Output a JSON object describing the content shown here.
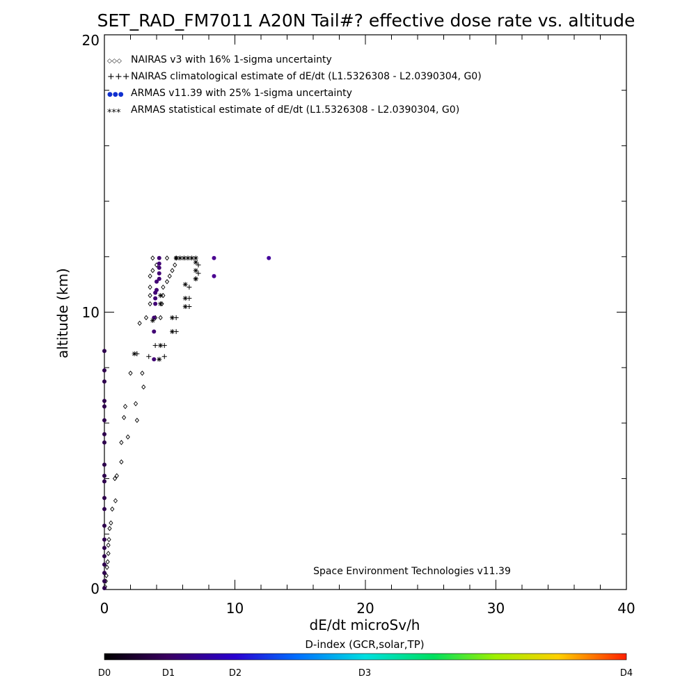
{
  "chart_data": {
    "type": "scatter",
    "title": "SET_RAD_FM7011  A20N Tail#? effective dose rate vs. altitude",
    "xlabel": "dE/dt microSv/h",
    "ylabel": "altitude (km)",
    "xlim": [
      0,
      40
    ],
    "ylim": [
      0,
      20
    ],
    "xticks": [
      "0",
      "10",
      "20",
      "30",
      "40"
    ],
    "yticks": [
      "0",
      "10",
      "20"
    ],
    "grid": false,
    "legend_position": "top-left",
    "legend": [
      {
        "marker": "◇◇◇",
        "label": "NAIRAS v3 with 16% 1-sigma uncertainty"
      },
      {
        "marker": "+++",
        "label": "NAIRAS climatological estimate of dE/dt (L1.5326308 - L2.0390304, G0)"
      },
      {
        "marker": "●●●",
        "label": "ARMAS v11.39 with 25% 1-sigma uncertainty"
      },
      {
        "marker": "***",
        "label": "ARMAS statistical estimate of dE/dt (L1.5326308 - L2.0390304, G0)"
      }
    ],
    "annotation": "Space Environment Technologies v11.39",
    "colorbar": {
      "title": "D-index (GCR,solar,TP)",
      "labels": [
        {
          "text": "D0",
          "value": 0
        },
        {
          "text": "D1",
          "value": 1
        },
        {
          "text": "D2",
          "value": 2
        },
        {
          "text": "D3",
          "value": 3
        },
        {
          "text": "D4",
          "value": 4
        }
      ]
    },
    "series": [
      {
        "name": "NAIRAS v3 with 16% 1-sigma uncertainty",
        "marker": "diamond",
        "color": "#000000",
        "points": [
          [
            0.05,
            0.1
          ],
          [
            0.1,
            0.3
          ],
          [
            0.15,
            0.5
          ],
          [
            0.2,
            0.8
          ],
          [
            0.25,
            1.0
          ],
          [
            0.3,
            1.3
          ],
          [
            0.3,
            1.6
          ],
          [
            0.35,
            1.8
          ],
          [
            0.4,
            2.2
          ],
          [
            0.5,
            2.4
          ],
          [
            0.6,
            2.9
          ],
          [
            0.85,
            3.2
          ],
          [
            0.8,
            4.0
          ],
          [
            0.95,
            4.1
          ],
          [
            1.3,
            4.6
          ],
          [
            1.3,
            5.3
          ],
          [
            1.8,
            5.5
          ],
          [
            1.5,
            6.2
          ],
          [
            2.5,
            6.1
          ],
          [
            1.6,
            6.6
          ],
          [
            2.4,
            6.7
          ],
          [
            3.0,
            7.3
          ],
          [
            2.0,
            7.8
          ],
          [
            2.9,
            7.8
          ],
          [
            2.7,
            9.6
          ],
          [
            3.2,
            9.8
          ],
          [
            3.9,
            9.8
          ],
          [
            4.3,
            9.8
          ],
          [
            3.5,
            10.3
          ],
          [
            4.4,
            10.3
          ],
          [
            3.5,
            10.6
          ],
          [
            4.5,
            10.6
          ],
          [
            3.5,
            10.9
          ],
          [
            4.5,
            10.9
          ],
          [
            4.8,
            11.1
          ],
          [
            3.5,
            11.3
          ],
          [
            5.0,
            11.3
          ],
          [
            3.7,
            11.5
          ],
          [
            5.2,
            11.5
          ],
          [
            4.0,
            11.7
          ],
          [
            5.4,
            11.7
          ],
          [
            3.7,
            11.95
          ],
          [
            4.8,
            11.95
          ],
          [
            5.5,
            11.95
          ]
        ]
      },
      {
        "name": "NAIRAS climatological estimate of dE/dt (L1.5326308 - L2.0390304, G0)",
        "marker": "plus",
        "color": "#000000",
        "points": [
          [
            2.5,
            8.5
          ],
          [
            3.4,
            8.4
          ],
          [
            4.6,
            8.4
          ],
          [
            3.9,
            8.8
          ],
          [
            4.6,
            8.8
          ],
          [
            5.5,
            9.3
          ],
          [
            5.5,
            9.8
          ],
          [
            6.5,
            10.2
          ],
          [
            6.5,
            10.5
          ],
          [
            6.5,
            10.9
          ],
          [
            7.0,
            11.2
          ],
          [
            7.2,
            11.4
          ],
          [
            7.2,
            11.7
          ]
        ]
      },
      {
        "name": "ARMAS v11.39 with 25% 1-sigma uncertainty",
        "marker": "circle",
        "points": [
          [
            0.0,
            0.05,
            0.4
          ],
          [
            0.0,
            0.3,
            0.4
          ],
          [
            0.0,
            0.6,
            0.4
          ],
          [
            0.0,
            0.9,
            0.4
          ],
          [
            0.0,
            1.2,
            0.4
          ],
          [
            0.0,
            1.5,
            0.4
          ],
          [
            0.0,
            1.8,
            0.4
          ],
          [
            0.0,
            2.3,
            0.4
          ],
          [
            0.0,
            2.9,
            0.4
          ],
          [
            0.0,
            3.3,
            0.4
          ],
          [
            0.0,
            3.9,
            0.4
          ],
          [
            0.0,
            4.1,
            0.4
          ],
          [
            0.0,
            4.5,
            0.4
          ],
          [
            0.0,
            5.3,
            0.4
          ],
          [
            0.0,
            5.6,
            0.4
          ],
          [
            0.0,
            6.1,
            0.4
          ],
          [
            0.0,
            6.6,
            0.4
          ],
          [
            0.0,
            6.8,
            0.4
          ],
          [
            0.0,
            7.5,
            0.4
          ],
          [
            0.0,
            7.9,
            0.4
          ],
          [
            0.0,
            8.6,
            0.4
          ],
          [
            3.8,
            8.3,
            0.7
          ],
          [
            3.8,
            9.3,
            0.7
          ],
          [
            3.8,
            9.8,
            0.7
          ],
          [
            3.9,
            10.3,
            0.7
          ],
          [
            3.9,
            10.5,
            0.7
          ],
          [
            3.9,
            10.7,
            0.7
          ],
          [
            4.0,
            10.8,
            0.7
          ],
          [
            4.0,
            11.1,
            0.7
          ],
          [
            4.2,
            11.2,
            0.7
          ],
          [
            4.2,
            11.4,
            0.7
          ],
          [
            4.2,
            11.6,
            0.7
          ],
          [
            4.2,
            11.75,
            0.7
          ],
          [
            4.2,
            11.95,
            0.7
          ],
          [
            8.4,
            11.95,
            1.0
          ],
          [
            8.4,
            11.3,
            1.0
          ],
          [
            12.6,
            11.95,
            1.1
          ]
        ]
      },
      {
        "name": "ARMAS statistical estimate of dE/dt (L1.5326308 - L2.0390304, G0)",
        "marker": "asterisk",
        "color": "#000000",
        "points": [
          [
            2.3,
            8.5
          ],
          [
            4.2,
            8.3
          ],
          [
            4.3,
            8.8
          ],
          [
            3.7,
            9.7
          ],
          [
            5.2,
            9.3
          ],
          [
            5.2,
            9.8
          ],
          [
            4.3,
            10.3
          ],
          [
            4.3,
            10.6
          ],
          [
            6.2,
            10.2
          ],
          [
            6.2,
            10.5
          ],
          [
            6.2,
            11.0
          ],
          [
            7.0,
            11.2
          ],
          [
            7.0,
            11.5
          ],
          [
            7.0,
            11.8
          ],
          [
            5.5,
            11.95
          ],
          [
            5.8,
            11.95
          ],
          [
            6.1,
            11.95
          ],
          [
            6.4,
            11.95
          ],
          [
            6.7,
            11.95
          ],
          [
            7.0,
            11.95
          ]
        ]
      }
    ]
  }
}
